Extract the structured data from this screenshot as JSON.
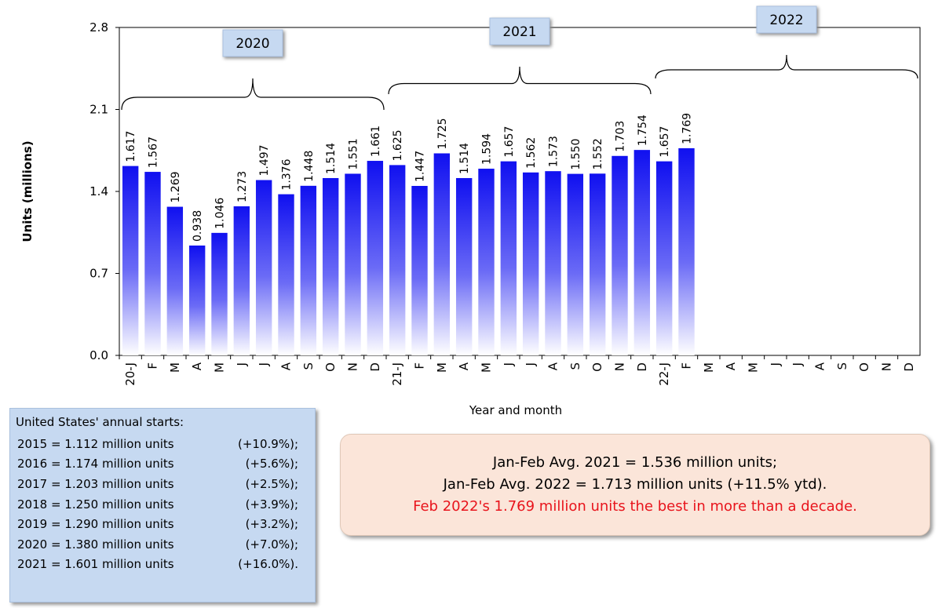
{
  "chart_data": {
    "type": "bar",
    "y_label": "Units (millions)",
    "x_label": "Year and month",
    "categories": [
      "20-J",
      "F",
      "M",
      "A",
      "M",
      "J",
      "J",
      "A",
      "S",
      "O",
      "N",
      "D",
      "21-J",
      "F",
      "M",
      "A",
      "M",
      "J",
      "J",
      "A",
      "S",
      "O",
      "N",
      "D",
      "22-J",
      "F",
      "M",
      "A",
      "M",
      "J",
      "J",
      "A",
      "S",
      "O",
      "N",
      "D"
    ],
    "values": [
      1.617,
      1.567,
      1.269,
      0.938,
      1.046,
      1.273,
      1.497,
      1.376,
      1.448,
      1.514,
      1.551,
      1.661,
      1.625,
      1.447,
      1.725,
      1.514,
      1.594,
      1.657,
      1.562,
      1.573,
      1.55,
      1.552,
      1.703,
      1.754,
      1.657,
      1.769,
      null,
      null,
      null,
      null,
      null,
      null,
      null,
      null,
      null,
      null
    ],
    "value_labels": [
      "1.617",
      "1.567",
      "1.269",
      "0.938",
      "1.046",
      "1.273",
      "1.497",
      "1.376",
      "1.448",
      "1.514",
      "1.551",
      "1.661",
      "1.625",
      "1.447",
      "1.725",
      "1.514",
      "1.594",
      "1.657",
      "1.562",
      "1.573",
      "1.550",
      "1.552",
      "1.703",
      "1.754",
      "1.657",
      "1.769",
      null,
      null,
      null,
      null,
      null,
      null,
      null,
      null,
      null,
      null
    ],
    "color": "#1010f0",
    "ylim": [
      0,
      2.8
    ],
    "yticks": [
      {
        "value": 0,
        "label": "0.0"
      },
      0.7,
      1.4,
      2.1,
      2.8
    ],
    "grid": false,
    "year_groups": [
      "2020",
      "2021",
      "2022"
    ]
  },
  "annual_box": {
    "title": "United States' annual starts:",
    "rows": [
      [
        "2015 = 1.112 million units",
        "(+10.9%);"
      ],
      [
        "2016 = 1.174 million units",
        "(+5.6%);"
      ],
      [
        "2017 = 1.203 million units",
        "(+2.5%);"
      ],
      [
        "2018 = 1.250 million units",
        "(+3.9%);"
      ],
      [
        "2019 = 1.290 million units",
        "(+3.2%);"
      ],
      [
        "2020 = 1.380 million units",
        "(+7.0%);"
      ],
      [
        "2021 = 1.601 million units",
        "(+16.0%)."
      ]
    ]
  },
  "summary_box": {
    "lines": [
      "Jan-Feb Avg. 2021 = 1.536 million units;",
      "Jan-Feb Avg. 2022 = 1.713 million units (+11.5% ytd).",
      "Feb 2022's 1.769 million units the best in more than a decade."
    ]
  }
}
